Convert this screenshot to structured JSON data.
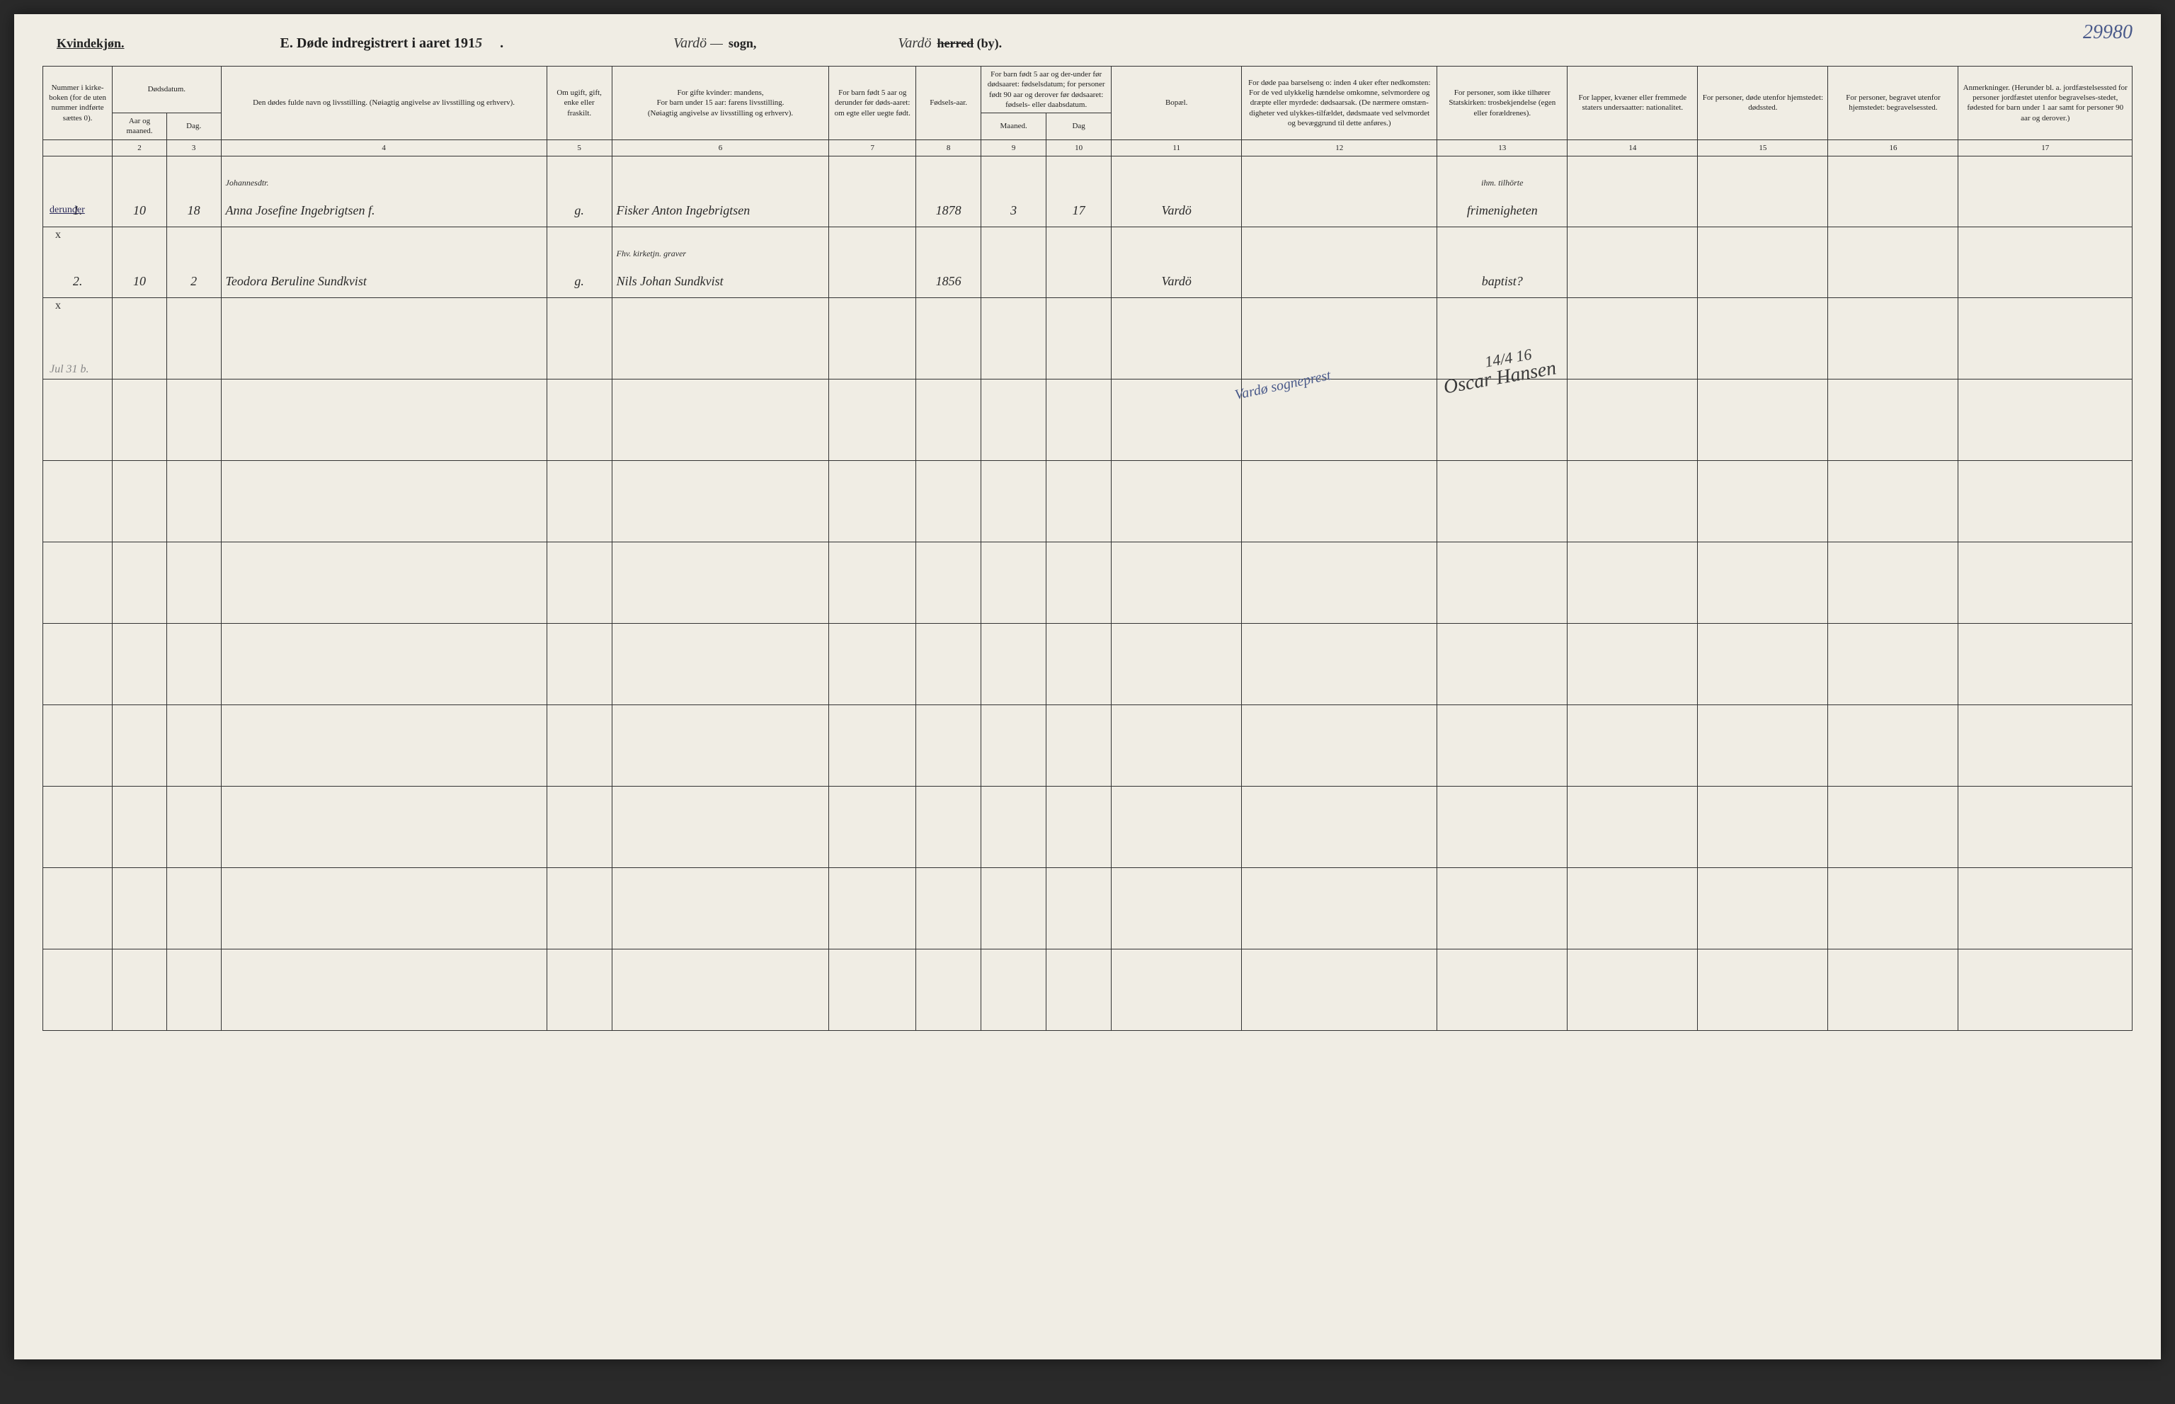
{
  "corner_number": "29980",
  "gender_label": "Kvindekjøn.",
  "title_prefix": "E.  Døde indregistrert i aaret 191",
  "title_year_suffix": "5",
  "title_period": ".",
  "sogn_value": "Vardö —",
  "sogn_label": "sogn,",
  "herred_value": "Vardö",
  "herred_strike": "herred",
  "herred_suffix": "(by).",
  "margin_label": "derunder",
  "left_pencil": "Jul 31 b.",
  "headers": {
    "c1": "Nummer i kirke-boken (for de uten nummer indførte sættes 0).",
    "c2_top": "Dødsdatum.",
    "c2a": "Aar og maaned.",
    "c2b": "Dag.",
    "c4": "Den dødes fulde navn og livsstilling. (Nøiagtig angivelse av livsstilling og erhverv).",
    "c5": "Om ugift, gift, enke eller fraskilt.",
    "c6": "For gifte kvinder: mandens,\nFor barn under 15 aar: farens livsstilling.\n(Nøiagtig angivelse av livsstilling og erhverv).",
    "c7": "For barn født 5 aar og derunder før døds-aaret: om egte eller uegte født.",
    "c8": "Fødsels-aar.",
    "c9_top": "For barn født 5 aar og der-under før dødsaaret: fødselsdatum; for personer født 90 aar og derover før dødsaaret: fødsels- eller daabsdatum.",
    "c9a": "Maaned.",
    "c9b": "Dag",
    "c11": "Bopæl.",
    "c12": "For døde paa barselseng o: inden 4 uker efter nedkomsten: For de ved ulykkelig hændelse omkomne, selvmordere og dræpte eller myrdede: dødsaarsak. (De nærmere omstæn-digheter ved ulykkes-tilfældet, dødsmaate ved selvmordet og bevæggrund til dette anføres.)",
    "c13": "For personer, som ikke tilhører Statskirken: trosbekjendelse (egen eller forældrenes).",
    "c14": "For lapper, kvæner eller fremmede staters undersaatter: nationalitet.",
    "c15": "For personer, døde utenfor hjemstedet: dødssted.",
    "c16": "For personer, begravet utenfor hjemstedet: begravelsessted.",
    "c17": "Anmerkninger. (Herunder bl. a. jordfæstelsessted for personer jordfæstet utenfor begravelses-stedet, fødested for barn under 1 aar samt for personer 90 aar og derover.)"
  },
  "colnums": [
    "",
    "2",
    "3",
    "4",
    "5",
    "6",
    "7",
    "8",
    "9",
    "10",
    "11",
    "12",
    "13",
    "14",
    "15",
    "16",
    "17"
  ],
  "rows": [
    {
      "mark": "x",
      "num": "1.",
      "aar_mnd": "10",
      "dag": "18",
      "name_sup": "Johannesdtr.",
      "name": "Anna Josefine Ingebrigtsen f.",
      "status": "g.",
      "occupation": "Fisker Anton Ingebrigtsen",
      "col7": "",
      "birth_year": "1878",
      "birth_m": "3",
      "birth_d": "17",
      "residence": "Vardö",
      "col12": "",
      "col13_sup": "ihm. tilhörte",
      "col13": "frimenigheten",
      "col14": "",
      "col15": "",
      "col16": "",
      "col17": ""
    },
    {
      "mark": "x",
      "num": "2.",
      "aar_mnd": "10",
      "dag": "2",
      "name_sup": "",
      "name": "Teodora Beruline Sundkvist",
      "status": "g.",
      "occupation_sup": "Fhv. kirketjn. graver",
      "occupation": "Nils Johan Sundkvist",
      "col7": "",
      "birth_year": "1856",
      "birth_m": "",
      "birth_d": "",
      "residence": "Vardö",
      "col12": "",
      "col13": "baptist?",
      "col14": "",
      "col15": "",
      "col16": "",
      "col17": ""
    }
  ],
  "empty_row_count": 9,
  "pencil_sognprest": "Vardø sogneprest",
  "signature_date": "14/4 16",
  "signature_name": "Oscar Hansen",
  "colors": {
    "page_bg": "#f0ede4",
    "ink": "#2a2a2a",
    "pencil_blue": "#4a5a8a",
    "border": "#333333"
  }
}
